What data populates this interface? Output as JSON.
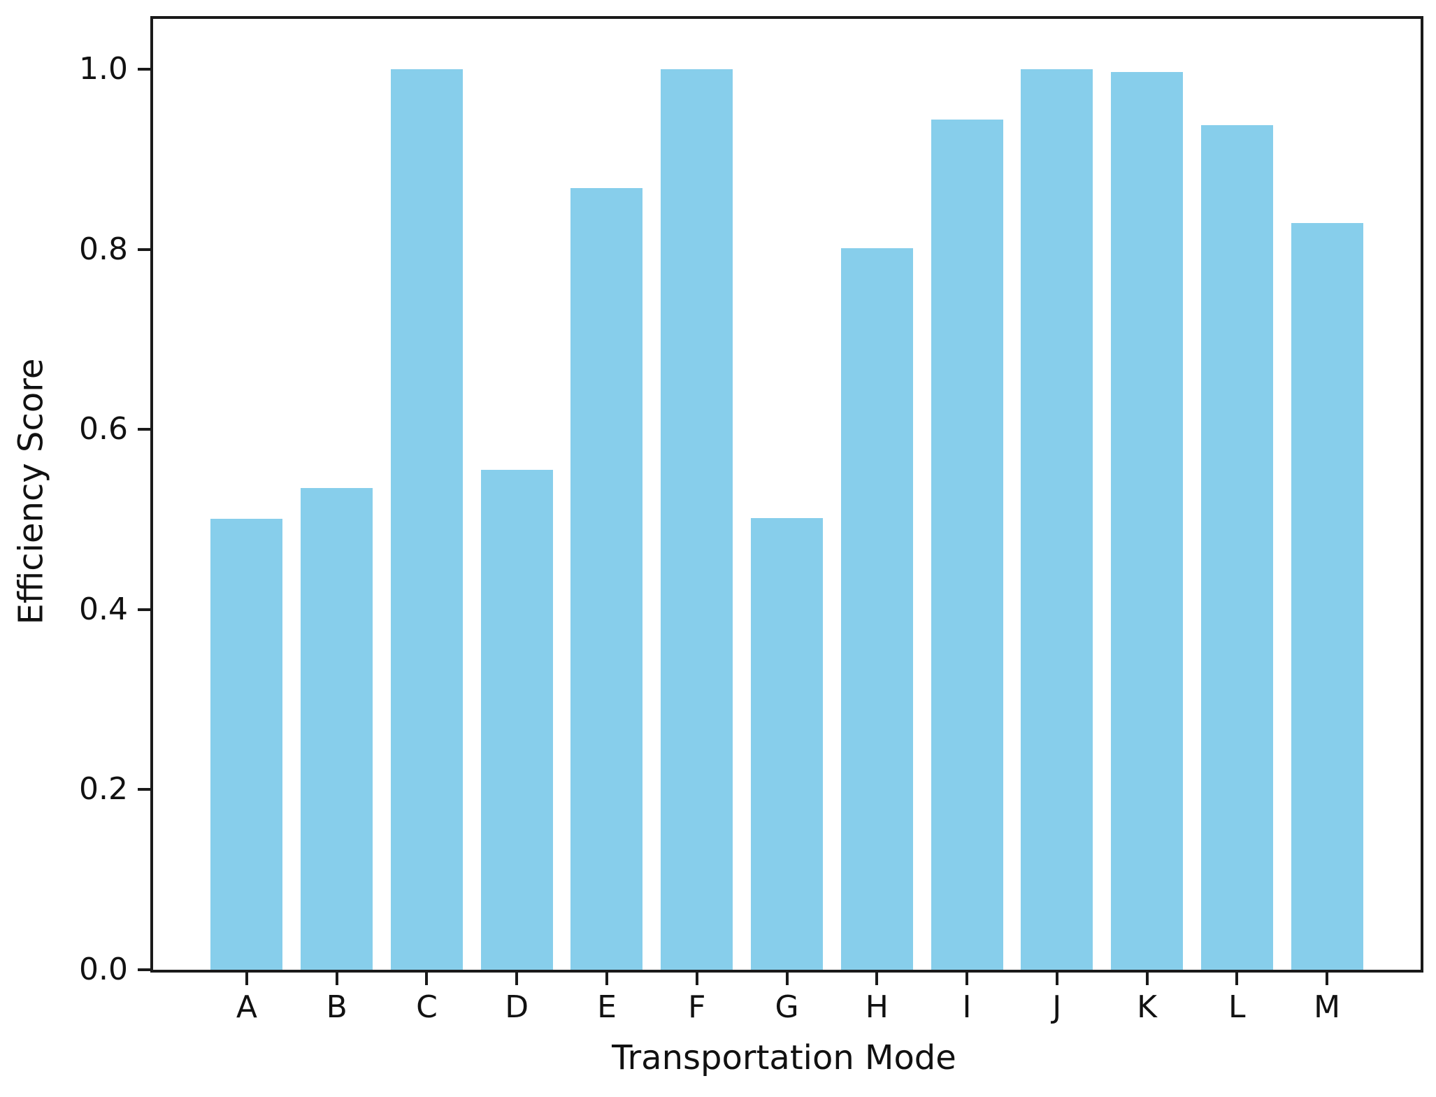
{
  "chart_data": {
    "type": "bar",
    "title": "",
    "xlabel": "Transportation Mode",
    "ylabel": "Efficiency Score",
    "categories": [
      "A",
      "B",
      "C",
      "D",
      "E",
      "F",
      "G",
      "H",
      "I",
      "J",
      "K",
      "L",
      "M"
    ],
    "values": [
      0.501,
      0.535,
      1.0,
      0.555,
      0.868,
      1.0,
      0.502,
      0.801,
      0.944,
      1.0,
      0.997,
      0.938,
      0.829
    ],
    "series_name": "Efficiency Score",
    "yticks": [
      0.0,
      0.2,
      0.4,
      0.6,
      0.8,
      1.0
    ],
    "ytick_labels": [
      "0.0",
      "0.2",
      "0.4",
      "0.6",
      "0.8",
      "1.0"
    ],
    "ylim": [
      0,
      1.056
    ],
    "xlim_units": [
      -1.04,
      13.04
    ],
    "bar_width_fraction": 0.8,
    "bar_color": "#87CEEB",
    "axis_color": "#1a1a1a",
    "text_color": "#111111",
    "background_color": "#ffffff",
    "grid": false,
    "legend_position": "none"
  }
}
